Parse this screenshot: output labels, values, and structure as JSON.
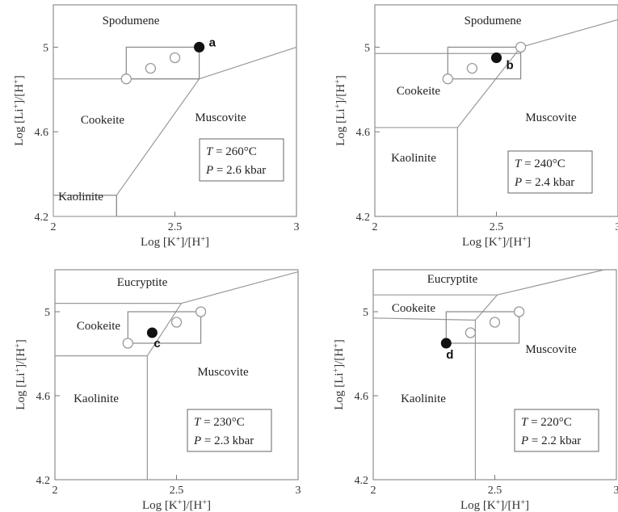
{
  "chart_data": [
    {
      "type": "scatter",
      "panel": "a",
      "xlabel": "Log [K⁺]/[H⁺]",
      "ylabel": "Log [Li⁺]/[H⁺]",
      "xlim": [
        2,
        3
      ],
      "ylim": [
        4.2,
        5.2
      ],
      "x_ticks": [
        "2",
        "2.5",
        "3"
      ],
      "y_ticks": [
        "4.2",
        "4.6",
        "5"
      ],
      "temperature": "260°C",
      "pressure": "2.6 kbar",
      "regions": [
        "Spodumene",
        "Cookeite",
        "Muscovite",
        "Kaolinite"
      ],
      "open_points": [
        [
          2.3,
          4.85
        ],
        [
          2.4,
          4.9
        ],
        [
          2.5,
          4.95
        ],
        [
          2.6,
          5.0
        ]
      ],
      "filled_point": {
        "x": 2.6,
        "y": 5.0,
        "label": "a"
      },
      "data_box": {
        "x": [
          2.3,
          2.6
        ],
        "y": [
          4.85,
          5.0
        ]
      },
      "boundaries": [
        [
          [
            2,
            4.85
          ],
          [
            2.6,
            4.85
          ]
        ],
        [
          [
            2.6,
            4.85
          ],
          [
            3,
            5.0
          ]
        ],
        [
          [
            2.6,
            4.85
          ],
          [
            2.26,
            4.3
          ]
        ],
        [
          [
            2,
            4.3
          ],
          [
            2.26,
            4.3
          ]
        ],
        [
          [
            2.26,
            4.3
          ],
          [
            2.26,
            4.2
          ]
        ]
      ]
    },
    {
      "type": "scatter",
      "panel": "b",
      "xlabel": "Log [K⁺]/[H⁺]",
      "ylabel": "Log [Li⁺]/[H⁺]",
      "xlim": [
        2,
        3
      ],
      "ylim": [
        4.2,
        5.2
      ],
      "x_ticks": [
        "2",
        "2.5",
        "3"
      ],
      "y_ticks": [
        "4.2",
        "4.6",
        "5"
      ],
      "temperature": "240°C",
      "pressure": "2.4 kbar",
      "regions": [
        "Spodumene",
        "Cookeite",
        "Muscovite",
        "Kaolinite"
      ],
      "open_points": [
        [
          2.3,
          4.85
        ],
        [
          2.4,
          4.9
        ],
        [
          2.5,
          4.95
        ],
        [
          2.6,
          5.0
        ]
      ],
      "filled_point": {
        "x": 2.5,
        "y": 4.95,
        "label": "b"
      },
      "data_box": {
        "x": [
          2.3,
          2.6
        ],
        "y": [
          4.85,
          5.0
        ]
      },
      "boundaries": [
        [
          [
            2,
            4.97
          ],
          [
            2.6,
            4.97
          ]
        ],
        [
          [
            2.6,
            5.0
          ],
          [
            3,
            5.13
          ]
        ],
        [
          [
            2.6,
            5.0
          ],
          [
            2.34,
            4.62
          ]
        ],
        [
          [
            2,
            4.62
          ],
          [
            2.34,
            4.62
          ]
        ],
        [
          [
            2.34,
            4.62
          ],
          [
            2.34,
            4.2
          ]
        ]
      ]
    },
    {
      "type": "scatter",
      "panel": "c",
      "xlabel": "Log [K⁺]/[H⁺]",
      "ylabel": "Log [Li⁺]/[H⁺]",
      "xlim": [
        2,
        3
      ],
      "ylim": [
        4.2,
        5.2
      ],
      "x_ticks": [
        "2",
        "2.5",
        "3"
      ],
      "y_ticks": [
        "4.2",
        "4.6",
        "5"
      ],
      "temperature": "230°C",
      "pressure": "2.3 kbar",
      "regions": [
        "Eucryptite",
        "Cookeite",
        "Muscovite",
        "Kaolinite"
      ],
      "open_points": [
        [
          2.3,
          4.85
        ],
        [
          2.5,
          4.95
        ],
        [
          2.6,
          5.0
        ]
      ],
      "filled_point": {
        "x": 2.4,
        "y": 4.9,
        "label": "c"
      },
      "data_box": {
        "x": [
          2.3,
          2.6
        ],
        "y": [
          4.85,
          5.0
        ]
      },
      "boundaries": [
        [
          [
            2,
            5.04
          ],
          [
            2.52,
            5.04
          ]
        ],
        [
          [
            2.52,
            5.04
          ],
          [
            3,
            5.19
          ]
        ],
        [
          [
            2.52,
            5.04
          ],
          [
            2.38,
            4.79
          ]
        ],
        [
          [
            2,
            4.79
          ],
          [
            2.38,
            4.79
          ]
        ],
        [
          [
            2.38,
            4.79
          ],
          [
            2.38,
            4.2
          ]
        ]
      ]
    },
    {
      "type": "scatter",
      "panel": "d",
      "xlabel": "Log [K⁺]/[H⁺]",
      "ylabel": "Log [Li⁺]/[H⁺]",
      "xlim": [
        2,
        3
      ],
      "ylim": [
        4.2,
        5.2
      ],
      "x_ticks": [
        "2",
        "2.5",
        "3"
      ],
      "y_ticks": [
        "4.2",
        "4.6",
        "5"
      ],
      "temperature": "220°C",
      "pressure": "2.2 kbar",
      "regions": [
        "Eucryptite",
        "Cookeite",
        "Muscovite",
        "Kaolinite"
      ],
      "open_points": [
        [
          2.4,
          4.9
        ],
        [
          2.5,
          4.95
        ],
        [
          2.6,
          5.0
        ]
      ],
      "filled_point": {
        "x": 2.3,
        "y": 4.85,
        "label": "d"
      },
      "data_box": {
        "x": [
          2.3,
          2.6
        ],
        "y": [
          4.85,
          5.0
        ]
      },
      "boundaries": [
        [
          [
            2,
            5.08
          ],
          [
            2.51,
            5.08
          ]
        ],
        [
          [
            2.51,
            5.08
          ],
          [
            2.95,
            5.2
          ]
        ],
        [
          [
            2.51,
            5.08
          ],
          [
            2.42,
            4.96
          ]
        ],
        [
          [
            2,
            4.97
          ],
          [
            2.42,
            4.96
          ]
        ],
        [
          [
            2.42,
            4.96
          ],
          [
            2.42,
            4.2
          ]
        ]
      ]
    }
  ]
}
